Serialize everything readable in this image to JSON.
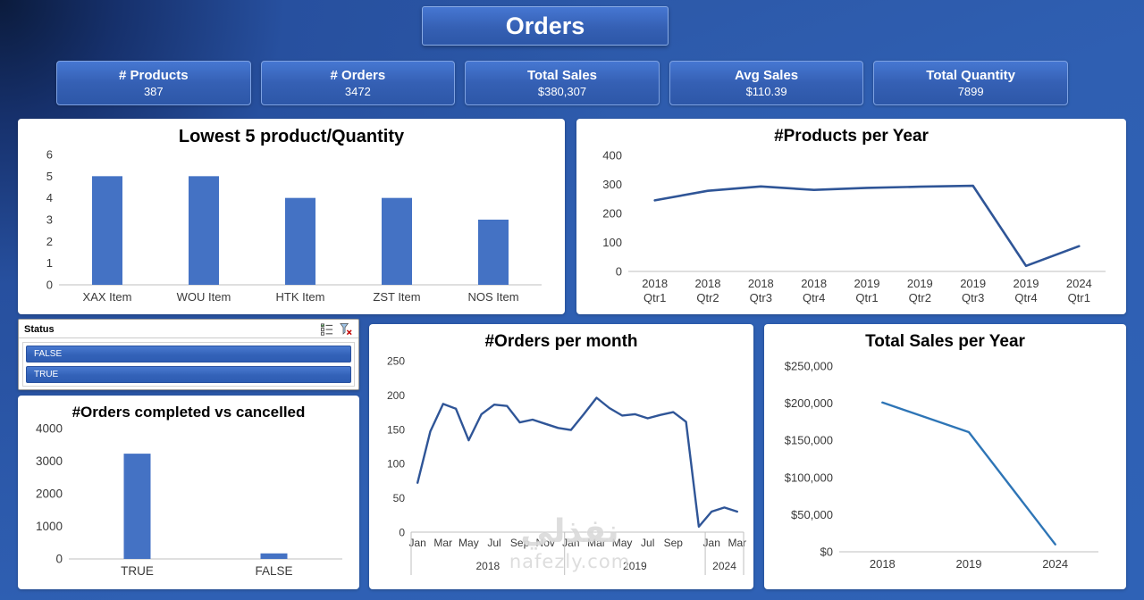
{
  "title": "Orders",
  "kpis": [
    {
      "label": "# Products",
      "value": "387"
    },
    {
      "label": "# Orders",
      "value": "3472"
    },
    {
      "label": "Total Sales",
      "value": "$380,307"
    },
    {
      "label": "Avg Sales",
      "value": "$110.39"
    },
    {
      "label": "Total Quantity",
      "value": "7899"
    }
  ],
  "slicer": {
    "title": "Status",
    "items": [
      "FALSE",
      "TRUE"
    ],
    "icons": [
      "multi-select-icon",
      "clear-filter-icon"
    ]
  },
  "watermark": {
    "line1": "نفذلي",
    "line2": "nafezly.com"
  },
  "colors": {
    "bar": "#4472c4",
    "line_dark": "#2f5597",
    "line_light": "#2e75b6",
    "axis": "#bfbfbf",
    "card_blue": "#3560b4",
    "background_blue": "#2f5fb2"
  },
  "chart_data": [
    {
      "id": "lowest5",
      "type": "bar",
      "title": "Lowest 5 product/Quantity",
      "categories": [
        "XAX Item",
        "WOU Item",
        "HTK Item",
        "ZST Item",
        "NOS Item"
      ],
      "values": [
        5,
        5,
        4,
        4,
        3
      ],
      "ylim": [
        0,
        6
      ],
      "yticks": [
        0,
        1,
        2,
        3,
        4,
        5,
        6
      ],
      "xlabel": "",
      "ylabel": "",
      "grid": false,
      "legend": "none"
    },
    {
      "id": "productsYear",
      "type": "line",
      "title": "#Products per Year",
      "x": [
        "2018 Qtr1",
        "2018 Qtr2",
        "2018 Qtr3",
        "2018 Qtr4",
        "2019 Qtr1",
        "2019 Qtr2",
        "2019 Qtr3",
        "2019 Qtr4",
        "2024 Qtr1"
      ],
      "xlabels": [
        [
          "2018",
          "Qtr1"
        ],
        [
          "2018",
          "Qtr2"
        ],
        [
          "2018",
          "Qtr3"
        ],
        [
          "2018",
          "Qtr4"
        ],
        [
          "2019",
          "Qtr1"
        ],
        [
          "2019",
          "Qtr2"
        ],
        [
          "2019",
          "Qtr3"
        ],
        [
          "2019",
          "Qtr4"
        ],
        [
          "2024",
          "Qtr1"
        ]
      ],
      "values": [
        245,
        278,
        293,
        281,
        288,
        292,
        295,
        19,
        87
      ],
      "ylim": [
        0,
        400
      ],
      "yticks": [
        0,
        100,
        200,
        300,
        400
      ],
      "xlabel": "",
      "ylabel": "",
      "grid": false,
      "legend": "none"
    },
    {
      "id": "ordersMonth",
      "type": "line",
      "title": "#Orders per month",
      "values": [
        72,
        147,
        187,
        180,
        134,
        172,
        186,
        184,
        160,
        164,
        158,
        152,
        149,
        172,
        196,
        181,
        170,
        172,
        166,
        171,
        175,
        161,
        8,
        30,
        36,
        30
      ],
      "ylim": [
        0,
        250
      ],
      "yticks": [
        0,
        50,
        100,
        150,
        200,
        250
      ],
      "month_labels": [
        {
          "i": 0,
          "t": "Jan"
        },
        {
          "i": 2,
          "t": "Mar"
        },
        {
          "i": 4,
          "t": "May"
        },
        {
          "i": 6,
          "t": "Jul"
        },
        {
          "i": 8,
          "t": "Sep"
        },
        {
          "i": 10,
          "t": "Nov"
        },
        {
          "i": 12,
          "t": "Jan"
        },
        {
          "i": 14,
          "t": "Mar"
        },
        {
          "i": 16,
          "t": "May"
        },
        {
          "i": 18,
          "t": "Jul"
        },
        {
          "i": 20,
          "t": "Sep"
        },
        {
          "i": 23,
          "t": "Jan"
        },
        {
          "i": 25,
          "t": "Mar"
        }
      ],
      "groups": [
        {
          "label": "2018",
          "start": 0,
          "end": 11
        },
        {
          "label": "2019",
          "start": 12,
          "end": 22
        },
        {
          "label": "2024",
          "start": 23,
          "end": 25
        }
      ],
      "xlabel": "",
      "ylabel": "",
      "grid": false,
      "legend": "none"
    },
    {
      "id": "completed",
      "type": "bar",
      "title": "#Orders completed vs cancelled",
      "categories": [
        "TRUE",
        "FALSE"
      ],
      "values": [
        3230,
        170
      ],
      "ylim": [
        0,
        4000
      ],
      "yticks": [
        0,
        1000,
        2000,
        3000,
        4000
      ],
      "xlabel": "",
      "ylabel": "",
      "grid": false,
      "legend": "none"
    },
    {
      "id": "salesYear",
      "type": "line",
      "title": "Total Sales per Year",
      "x": [
        "2018",
        "2019",
        "2024"
      ],
      "xlabels": [
        "2018",
        "2019",
        "2024"
      ],
      "values": [
        201000,
        161000,
        10000
      ],
      "ylim": [
        0,
        250000
      ],
      "yticks": [
        0,
        50000,
        100000,
        150000,
        200000,
        250000
      ],
      "ytick_labels": [
        "$0",
        "$50,000",
        "$100,000",
        "$150,000",
        "$200,000",
        "$250,000"
      ],
      "xlabel": "",
      "ylabel": "",
      "grid": false,
      "legend": "none"
    }
  ]
}
